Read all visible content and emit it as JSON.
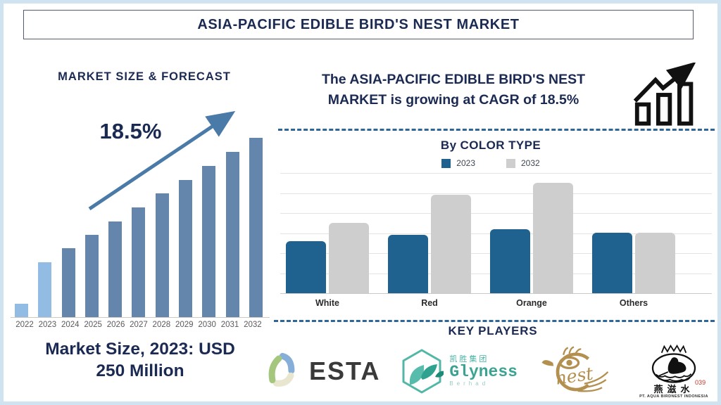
{
  "page": {
    "title": "ASIA-PACIFIC EDIBLE BIRD'S NEST MARKET"
  },
  "colors": {
    "navy_text": "#1b2a52",
    "frame_border": "#cfe3f0",
    "forecast_bar": "#6486ac",
    "forecast_bar_highlight": "#92bce4",
    "arrow": "#4a7aa8",
    "series_2023_blue": "#1f618f",
    "series_2032_gray": "#cecece",
    "dashed_divider": "#2f6699",
    "gold_logo": "#b3904f",
    "teal_logo": "#45b3a2"
  },
  "left_panel": {
    "heading": "MARKET SIZE & FORECAST",
    "cagr_label": "18.5%",
    "market_size_line1": "Market Size, 2023: USD",
    "market_size_line2": "250 Million"
  },
  "right_panel": {
    "cagr_text_line1": "The ASIA-PACIFIC EDIBLE BIRD'S NEST",
    "cagr_text_line2": "MARKET is growing at CAGR of 18.5%",
    "section_heading": "By COLOR TYPE",
    "legend": [
      {
        "label": "2023",
        "color": "#1f618f"
      },
      {
        "label": "2032",
        "color": "#cecece"
      }
    ],
    "key_players_heading": "KEY PLAYERS",
    "players": [
      {
        "name": "ESTA",
        "text": "ESTA"
      },
      {
        "name": "Glyness Berhad",
        "chinese": "凯胜集团",
        "text": "Glyness",
        "subtext": "Berhad"
      },
      {
        "name": "Nest",
        "text": "nest"
      },
      {
        "name": "PT. Aqua Birdnest Indonesia",
        "chinese": "燕滋水",
        "number": "039",
        "caption": "PT. AQUA BIRDNEST INDONESIA"
      }
    ]
  },
  "chart_data": [
    {
      "type": "bar",
      "title": "MARKET SIZE & FORECAST",
      "categories": [
        "2022",
        "2023",
        "2024",
        "2025",
        "2026",
        "2027",
        "2028",
        "2029",
        "2030",
        "2031",
        "2032"
      ],
      "values": [
        7.5,
        30.5,
        38.5,
        46,
        53.5,
        61,
        69,
        76.5,
        84.5,
        92,
        100
      ],
      "value_note": "relative bar heights, no y-axis shown (pictorial forecast)",
      "bar_color": "#6486ac",
      "highlight_color": "#92bce4",
      "highlight_categories": [
        "2022",
        "2023"
      ],
      "annotation": "18.5%",
      "footnote": "Market Size, 2023: USD 250 Million",
      "xlabel": "",
      "ylabel": "",
      "grid": false
    },
    {
      "type": "bar",
      "title": "By COLOR TYPE",
      "categories": [
        "White",
        "Red",
        "Orange",
        "Others"
      ],
      "series": [
        {
          "name": "2023",
          "color": "#1f618f",
          "values": [
            26,
            29,
            32,
            30
          ]
        },
        {
          "name": "2032",
          "color": "#cecece",
          "values": [
            35,
            49,
            55,
            30
          ]
        }
      ],
      "value_note": "relative units estimated from gridlines, no y-axis labels shown",
      "ylim": [
        0,
        60
      ],
      "grid": true,
      "legend_position": "top"
    }
  ]
}
